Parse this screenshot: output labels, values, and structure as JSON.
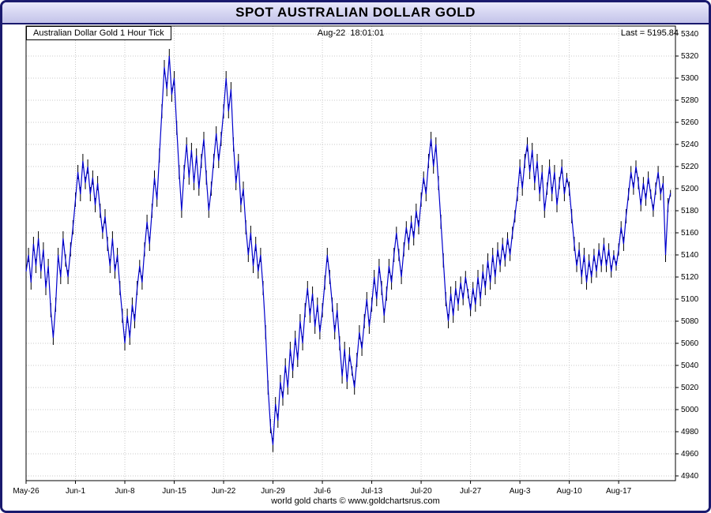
{
  "window": {
    "title": "SPOT AUSTRALIAN DOLLAR GOLD",
    "border_color": "#1a1a6e"
  },
  "header": {
    "series_label": "Australian Dollar Gold 1 Hour Tick",
    "timestamp": "Aug-22  18:01:01",
    "last_label": "Last = 5195.84"
  },
  "footer": {
    "copyright": "world gold charts © www.goldchartsrus.com"
  },
  "chart_data": {
    "type": "line",
    "title": "SPOT AUSTRALIAN DOLLAR GOLD",
    "series_name": "Australian Dollar Gold 1 Hour Tick",
    "last_value": 5195.84,
    "timestamp": "Aug-22 18:01:01",
    "grid": true,
    "legend_position": "none",
    "line_color": "#0000cc",
    "tick_color": "#000000",
    "grid_color": "#c9c9c9",
    "ylim": [
      4940,
      5340
    ],
    "y_tick_step": 20,
    "x_max_units": 13.15,
    "x_label_spacing_units": 1,
    "x_tick_labels": [
      "May-26",
      "Jun-1",
      "Jun-8",
      "Jun-15",
      "Jun-22",
      "Jun-29",
      "Jul-6",
      "Jul-13",
      "Jul-20",
      "Jul-27",
      "Aug-3",
      "Aug-10",
      "Aug-17"
    ],
    "points": [
      [
        0,
        5125
      ],
      [
        0.05,
        5140
      ],
      [
        0.1,
        5115
      ],
      [
        0.15,
        5150
      ],
      [
        0.2,
        5130
      ],
      [
        0.25,
        5155
      ],
      [
        0.3,
        5125
      ],
      [
        0.35,
        5145
      ],
      [
        0.4,
        5110
      ],
      [
        0.45,
        5130
      ],
      [
        0.5,
        5090
      ],
      [
        0.55,
        5065
      ],
      [
        0.6,
        5095
      ],
      [
        0.65,
        5140
      ],
      [
        0.7,
        5120
      ],
      [
        0.75,
        5155
      ],
      [
        0.8,
        5135
      ],
      [
        0.85,
        5120
      ],
      [
        0.9,
        5145
      ],
      [
        0.95,
        5165
      ],
      [
        1,
        5190
      ],
      [
        1.05,
        5215
      ],
      [
        1.1,
        5195
      ],
      [
        1.15,
        5225
      ],
      [
        1.2,
        5205
      ],
      [
        1.25,
        5220
      ],
      [
        1.3,
        5195
      ],
      [
        1.35,
        5210
      ],
      [
        1.4,
        5185
      ],
      [
        1.45,
        5205
      ],
      [
        1.5,
        5180
      ],
      [
        1.55,
        5160
      ],
      [
        1.6,
        5175
      ],
      [
        1.65,
        5150
      ],
      [
        1.7,
        5130
      ],
      [
        1.75,
        5155
      ],
      [
        1.8,
        5125
      ],
      [
        1.85,
        5140
      ],
      [
        1.9,
        5110
      ],
      [
        1.95,
        5085
      ],
      [
        2,
        5060
      ],
      [
        2.05,
        5085
      ],
      [
        2.1,
        5065
      ],
      [
        2.15,
        5095
      ],
      [
        2.2,
        5080
      ],
      [
        2.25,
        5110
      ],
      [
        2.3,
        5130
      ],
      [
        2.35,
        5115
      ],
      [
        2.4,
        5145
      ],
      [
        2.45,
        5170
      ],
      [
        2.5,
        5150
      ],
      [
        2.55,
        5180
      ],
      [
        2.6,
        5210
      ],
      [
        2.65,
        5190
      ],
      [
        2.7,
        5230
      ],
      [
        2.75,
        5270
      ],
      [
        2.8,
        5310
      ],
      [
        2.85,
        5290
      ],
      [
        2.9,
        5320
      ],
      [
        2.95,
        5285
      ],
      [
        3,
        5300
      ],
      [
        3.05,
        5255
      ],
      [
        3.1,
        5215
      ],
      [
        3.15,
        5180
      ],
      [
        3.2,
        5215
      ],
      [
        3.25,
        5240
      ],
      [
        3.3,
        5210
      ],
      [
        3.35,
        5235
      ],
      [
        3.4,
        5205
      ],
      [
        3.45,
        5230
      ],
      [
        3.5,
        5200
      ],
      [
        3.55,
        5225
      ],
      [
        3.6,
        5245
      ],
      [
        3.65,
        5210
      ],
      [
        3.7,
        5180
      ],
      [
        3.75,
        5200
      ],
      [
        3.8,
        5225
      ],
      [
        3.85,
        5250
      ],
      [
        3.9,
        5225
      ],
      [
        3.95,
        5245
      ],
      [
        4,
        5270
      ],
      [
        4.05,
        5300
      ],
      [
        4.1,
        5270
      ],
      [
        4.15,
        5290
      ],
      [
        4.2,
        5240
      ],
      [
        4.25,
        5205
      ],
      [
        4.3,
        5225
      ],
      [
        4.35,
        5185
      ],
      [
        4.4,
        5200
      ],
      [
        4.45,
        5165
      ],
      [
        4.5,
        5140
      ],
      [
        4.55,
        5160
      ],
      [
        4.6,
        5130
      ],
      [
        4.65,
        5150
      ],
      [
        4.7,
        5125
      ],
      [
        4.75,
        5140
      ],
      [
        4.8,
        5110
      ],
      [
        4.85,
        5070
      ],
      [
        4.9,
        5020
      ],
      [
        4.95,
        4985
      ],
      [
        5,
        4968
      ],
      [
        5.05,
        5005
      ],
      [
        5.1,
        4990
      ],
      [
        5.15,
        5025
      ],
      [
        5.2,
        5010
      ],
      [
        5.25,
        5040
      ],
      [
        5.3,
        5020
      ],
      [
        5.35,
        5055
      ],
      [
        5.4,
        5035
      ],
      [
        5.45,
        5065
      ],
      [
        5.5,
        5045
      ],
      [
        5.55,
        5080
      ],
      [
        5.6,
        5060
      ],
      [
        5.65,
        5090
      ],
      [
        5.7,
        5110
      ],
      [
        5.75,
        5085
      ],
      [
        5.8,
        5105
      ],
      [
        5.85,
        5075
      ],
      [
        5.9,
        5095
      ],
      [
        5.95,
        5070
      ],
      [
        6,
        5090
      ],
      [
        6.05,
        5115
      ],
      [
        6.1,
        5140
      ],
      [
        6.15,
        5120
      ],
      [
        6.2,
        5095
      ],
      [
        6.25,
        5070
      ],
      [
        6.3,
        5090
      ],
      [
        6.35,
        5060
      ],
      [
        6.4,
        5030
      ],
      [
        6.45,
        5055
      ],
      [
        6.5,
        5025
      ],
      [
        6.55,
        5050
      ],
      [
        6.6,
        5035
      ],
      [
        6.65,
        5020
      ],
      [
        6.7,
        5045
      ],
      [
        6.75,
        5070
      ],
      [
        6.8,
        5055
      ],
      [
        6.85,
        5080
      ],
      [
        6.9,
        5100
      ],
      [
        6.95,
        5075
      ],
      [
        7,
        5095
      ],
      [
        7.05,
        5120
      ],
      [
        7.1,
        5100
      ],
      [
        7.15,
        5130
      ],
      [
        7.2,
        5110
      ],
      [
        7.25,
        5085
      ],
      [
        7.3,
        5105
      ],
      [
        7.35,
        5130
      ],
      [
        7.4,
        5115
      ],
      [
        7.45,
        5140
      ],
      [
        7.5,
        5160
      ],
      [
        7.55,
        5140
      ],
      [
        7.6,
        5120
      ],
      [
        7.65,
        5145
      ],
      [
        7.7,
        5165
      ],
      [
        7.75,
        5150
      ],
      [
        7.8,
        5170
      ],
      [
        7.85,
        5155
      ],
      [
        7.9,
        5180
      ],
      [
        7.95,
        5165
      ],
      [
        8,
        5190
      ],
      [
        8.05,
        5210
      ],
      [
        8.1,
        5195
      ],
      [
        8.15,
        5225
      ],
      [
        8.2,
        5245
      ],
      [
        8.25,
        5220
      ],
      [
        8.3,
        5240
      ],
      [
        8.35,
        5205
      ],
      [
        8.4,
        5170
      ],
      [
        8.45,
        5135
      ],
      [
        8.5,
        5100
      ],
      [
        8.55,
        5080
      ],
      [
        8.6,
        5105
      ],
      [
        8.65,
        5085
      ],
      [
        8.7,
        5110
      ],
      [
        8.75,
        5095
      ],
      [
        8.8,
        5115
      ],
      [
        8.85,
        5100
      ],
      [
        8.9,
        5120
      ],
      [
        8.95,
        5105
      ],
      [
        9,
        5090
      ],
      [
        9.05,
        5110
      ],
      [
        9.1,
        5095
      ],
      [
        9.15,
        5120
      ],
      [
        9.2,
        5100
      ],
      [
        9.25,
        5125
      ],
      [
        9.3,
        5110
      ],
      [
        9.35,
        5135
      ],
      [
        9.4,
        5115
      ],
      [
        9.45,
        5140
      ],
      [
        9.5,
        5120
      ],
      [
        9.55,
        5145
      ],
      [
        9.6,
        5130
      ],
      [
        9.65,
        5150
      ],
      [
        9.7,
        5135
      ],
      [
        9.75,
        5155
      ],
      [
        9.8,
        5140
      ],
      [
        9.85,
        5160
      ],
      [
        9.9,
        5175
      ],
      [
        9.95,
        5195
      ],
      [
        10,
        5220
      ],
      [
        10.05,
        5200
      ],
      [
        10.1,
        5225
      ],
      [
        10.15,
        5240
      ],
      [
        10.2,
        5215
      ],
      [
        10.25,
        5235
      ],
      [
        10.3,
        5205
      ],
      [
        10.35,
        5225
      ],
      [
        10.4,
        5195
      ],
      [
        10.45,
        5215
      ],
      [
        10.5,
        5180
      ],
      [
        10.55,
        5200
      ],
      [
        10.6,
        5220
      ],
      [
        10.65,
        5195
      ],
      [
        10.7,
        5215
      ],
      [
        10.75,
        5185
      ],
      [
        10.8,
        5205
      ],
      [
        10.85,
        5220
      ],
      [
        10.9,
        5195
      ],
      [
        10.95,
        5210
      ],
      [
        11,
        5200
      ],
      [
        11.05,
        5175
      ],
      [
        11.1,
        5150
      ],
      [
        11.15,
        5130
      ],
      [
        11.2,
        5145
      ],
      [
        11.25,
        5120
      ],
      [
        11.3,
        5140
      ],
      [
        11.35,
        5115
      ],
      [
        11.4,
        5135
      ],
      [
        11.45,
        5120
      ],
      [
        11.5,
        5140
      ],
      [
        11.55,
        5125
      ],
      [
        11.6,
        5145
      ],
      [
        11.65,
        5130
      ],
      [
        11.7,
        5150
      ],
      [
        11.75,
        5130
      ],
      [
        11.8,
        5145
      ],
      [
        11.85,
        5125
      ],
      [
        11.9,
        5140
      ],
      [
        11.95,
        5130
      ],
      [
        12,
        5145
      ],
      [
        12.05,
        5165
      ],
      [
        12.1,
        5150
      ],
      [
        12.15,
        5175
      ],
      [
        12.2,
        5195
      ],
      [
        12.25,
        5215
      ],
      [
        12.3,
        5200
      ],
      [
        12.35,
        5220
      ],
      [
        12.4,
        5205
      ],
      [
        12.45,
        5185
      ],
      [
        12.5,
        5205
      ],
      [
        12.55,
        5190
      ],
      [
        12.6,
        5210
      ],
      [
        12.65,
        5195
      ],
      [
        12.7,
        5180
      ],
      [
        12.75,
        5200
      ],
      [
        12.8,
        5215
      ],
      [
        12.85,
        5195
      ],
      [
        12.9,
        5205
      ],
      [
        12.95,
        5140
      ],
      [
        13,
        5185
      ],
      [
        13.05,
        5195.84
      ]
    ]
  }
}
